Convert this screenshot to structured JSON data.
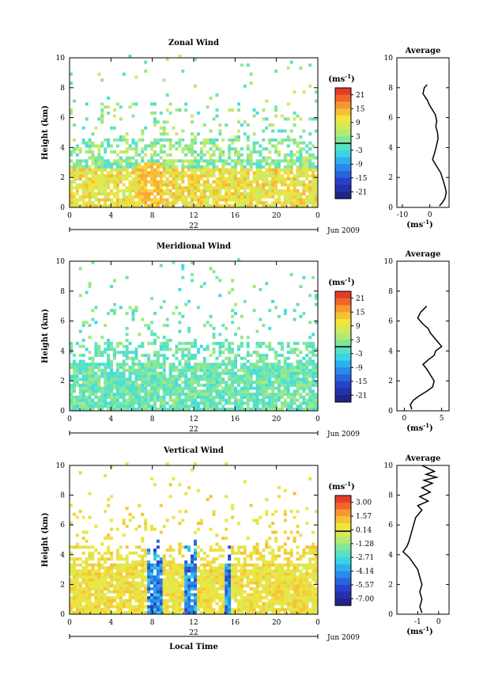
{
  "chart_data": [
    {
      "type": "heatmap",
      "title": "Zonal Wind",
      "ylabel": "Height (km)",
      "xlabel": "",
      "xlim": [
        0,
        24
      ],
      "ylim": [
        0,
        10
      ],
      "xticks": [
        "0",
        "4",
        "8",
        "12",
        "16",
        "20",
        "0"
      ],
      "yticks": [
        "0",
        "2",
        "4",
        "6",
        "8",
        "10"
      ],
      "date_marks": [
        "22"
      ],
      "date_label": "Jun 2009",
      "colorbar": {
        "unit_label": "(ms",
        "unit_exp": "-1",
        "unit_close": ")",
        "ticks": [
          "21",
          "15",
          "9",
          "3",
          "-3",
          "-9",
          "-15",
          "-21"
        ],
        "range": [
          -24,
          24
        ],
        "zero_line": 0
      },
      "profile": {
        "title": "Average",
        "xticks": [
          "-10",
          "0"
        ],
        "xlim": [
          -12,
          7
        ],
        "ylim": [
          0,
          10
        ],
        "yticks": [
          "0",
          "2",
          "4",
          "6",
          "8",
          "10"
        ],
        "xlabel": "(ms",
        "xlabel_exp": "-1",
        "xlabel_close": ")",
        "points": [
          [
            -1,
            8.2
          ],
          [
            -2,
            8.0
          ],
          [
            -2.5,
            7.6
          ],
          [
            -1,
            7.2
          ],
          [
            0,
            6.8
          ],
          [
            1,
            6.5
          ],
          [
            2,
            6.2
          ],
          [
            2.5,
            5.8
          ],
          [
            2.2,
            5.4
          ],
          [
            2.8,
            5.0
          ],
          [
            3,
            4.6
          ],
          [
            2.5,
            4.2
          ],
          [
            2,
            3.8
          ],
          [
            1.5,
            3.5
          ],
          [
            1,
            3.2
          ],
          [
            2,
            2.9
          ],
          [
            3,
            2.6
          ],
          [
            4,
            2.3
          ],
          [
            4.5,
            2.0
          ],
          [
            5,
            1.7
          ],
          [
            5.5,
            1.4
          ],
          [
            6,
            1.0
          ],
          [
            5.5,
            0.6
          ],
          [
            4.5,
            0.3
          ],
          [
            3.5,
            0.1
          ]
        ]
      }
    },
    {
      "type": "heatmap",
      "title": "Meridional Wind",
      "ylabel": "Height (km)",
      "xlabel": "",
      "xlim": [
        0,
        24
      ],
      "ylim": [
        0,
        10
      ],
      "xticks": [
        "0",
        "4",
        "8",
        "12",
        "16",
        "20",
        "0"
      ],
      "yticks": [
        "0",
        "2",
        "4",
        "6",
        "8",
        "10"
      ],
      "date_marks": [
        "22"
      ],
      "date_label": "Jun 2009",
      "colorbar": {
        "unit_label": "(ms",
        "unit_exp": "-1",
        "unit_close": ")",
        "ticks": [
          "21",
          "15",
          "9",
          "3",
          "-3",
          "-9",
          "-15",
          "-21"
        ],
        "range": [
          -24,
          24
        ],
        "zero_line": 0
      },
      "profile": {
        "title": "Average",
        "xticks": [
          "0",
          "5"
        ],
        "xlim": [
          -1,
          6
        ],
        "ylim": [
          0,
          10
        ],
        "yticks": [
          "0",
          "2",
          "4",
          "6",
          "8",
          "10"
        ],
        "xlabel": "(ms",
        "xlabel_exp": "-1",
        "xlabel_close": ")",
        "points": [
          [
            3,
            7.0
          ],
          [
            2.2,
            6.6
          ],
          [
            1.8,
            6.2
          ],
          [
            2.5,
            5.8
          ],
          [
            3.2,
            5.5
          ],
          [
            3.5,
            5.2
          ],
          [
            4,
            4.9
          ],
          [
            4.5,
            4.6
          ],
          [
            5,
            4.3
          ],
          [
            4.2,
            4.0
          ],
          [
            4,
            3.7
          ],
          [
            3.2,
            3.4
          ],
          [
            2.5,
            3.1
          ],
          [
            3,
            2.8
          ],
          [
            3.5,
            2.4
          ],
          [
            4,
            2.0
          ],
          [
            3.8,
            1.6
          ],
          [
            3,
            1.3
          ],
          [
            2,
            1.0
          ],
          [
            1.2,
            0.7
          ],
          [
            0.8,
            0.4
          ],
          [
            1,
            0.1
          ]
        ]
      }
    },
    {
      "type": "heatmap",
      "title": "Vertical Wind",
      "ylabel": "Height (km)",
      "xlabel": "Local Time",
      "xlim": [
        0,
        24
      ],
      "ylim": [
        0,
        10
      ],
      "xticks": [
        "0",
        "4",
        "8",
        "12",
        "16",
        "20",
        "0"
      ],
      "yticks": [
        "0",
        "2",
        "4",
        "6",
        "8",
        "10"
      ],
      "date_marks": [
        "22"
      ],
      "date_label": "Jun 2009",
      "colorbar": {
        "unit_label": "(ms",
        "unit_exp": "-1",
        "unit_close": ")",
        "ticks": [
          "3.00",
          "1.57",
          "0.14",
          "-1.28",
          "-2.71",
          "-4.14",
          "-5.57",
          "-7.00"
        ],
        "range": [
          -7.7,
          3.7
        ],
        "zero_line": 0
      },
      "profile": {
        "title": "Average",
        "xticks": [
          "-1",
          "0"
        ],
        "xlim": [
          -2,
          0.5
        ],
        "ylim": [
          0,
          10
        ],
        "yticks": [
          "0",
          "2",
          "4",
          "6",
          "8",
          "10"
        ],
        "xlabel": "(ms",
        "xlabel_exp": "-1",
        "xlabel_close": ")",
        "points": [
          [
            -0.8,
            10
          ],
          [
            -0.5,
            9.8
          ],
          [
            -0.2,
            9.6
          ],
          [
            -0.6,
            9.4
          ],
          [
            -0.1,
            9.2
          ],
          [
            -0.7,
            9.0
          ],
          [
            -0.3,
            8.8
          ],
          [
            -0.8,
            8.5
          ],
          [
            -0.4,
            8.2
          ],
          [
            -0.9,
            7.9
          ],
          [
            -0.5,
            7.6
          ],
          [
            -1,
            7.3
          ],
          [
            -0.8,
            7.0
          ],
          [
            -1.1,
            6.5
          ],
          [
            -1.2,
            6.0
          ],
          [
            -1.3,
            5.5
          ],
          [
            -1.4,
            5.0
          ],
          [
            -1.5,
            4.6
          ],
          [
            -1.7,
            4.2
          ],
          [
            -1.4,
            3.8
          ],
          [
            -1.2,
            3.4
          ],
          [
            -1.0,
            3.0
          ],
          [
            -0.9,
            2.5
          ],
          [
            -0.8,
            2.0
          ],
          [
            -0.9,
            1.5
          ],
          [
            -0.8,
            1.0
          ],
          [
            -0.9,
            0.5
          ],
          [
            -0.8,
            0.1
          ]
        ]
      }
    }
  ]
}
